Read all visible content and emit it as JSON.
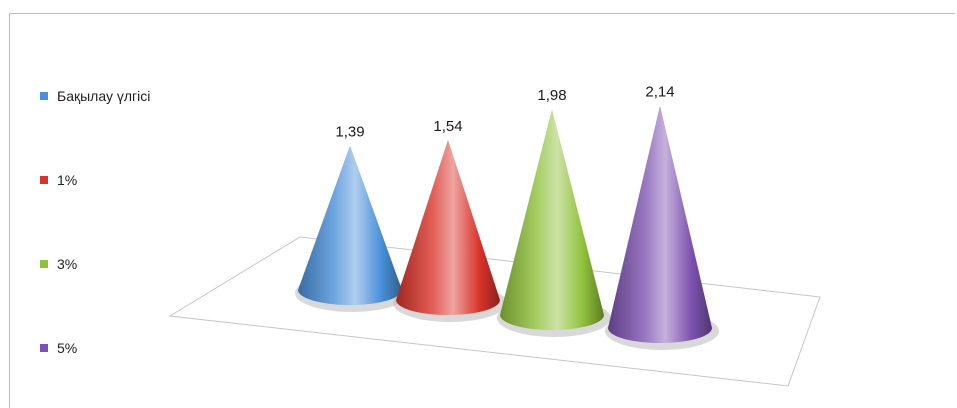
{
  "chart_data": {
    "type": "bar",
    "style": "3d-cone",
    "categories": [
      "Бақылау үлгісі",
      "1%",
      "3%",
      "5%"
    ],
    "series": [
      {
        "values": [
          1.39,
          1.54,
          1.98,
          2.14
        ]
      }
    ],
    "data_labels": [
      "1,39",
      "1,54",
      "1,98",
      "2,14"
    ],
    "colors": [
      "#4a90d9",
      "#d9342b",
      "#8fc13a",
      "#7d52b0"
    ],
    "title": "",
    "xlabel": "",
    "ylabel": "",
    "grid": false,
    "legend_position": "left",
    "legend": [
      {
        "label": "Бақылау үлгісі",
        "color": "#4a90d9"
      },
      {
        "label": "1%",
        "color": "#d9342b"
      },
      {
        "label": "3%",
        "color": "#8fc13a"
      },
      {
        "label": "5%",
        "color": "#7d52b0"
      }
    ]
  }
}
